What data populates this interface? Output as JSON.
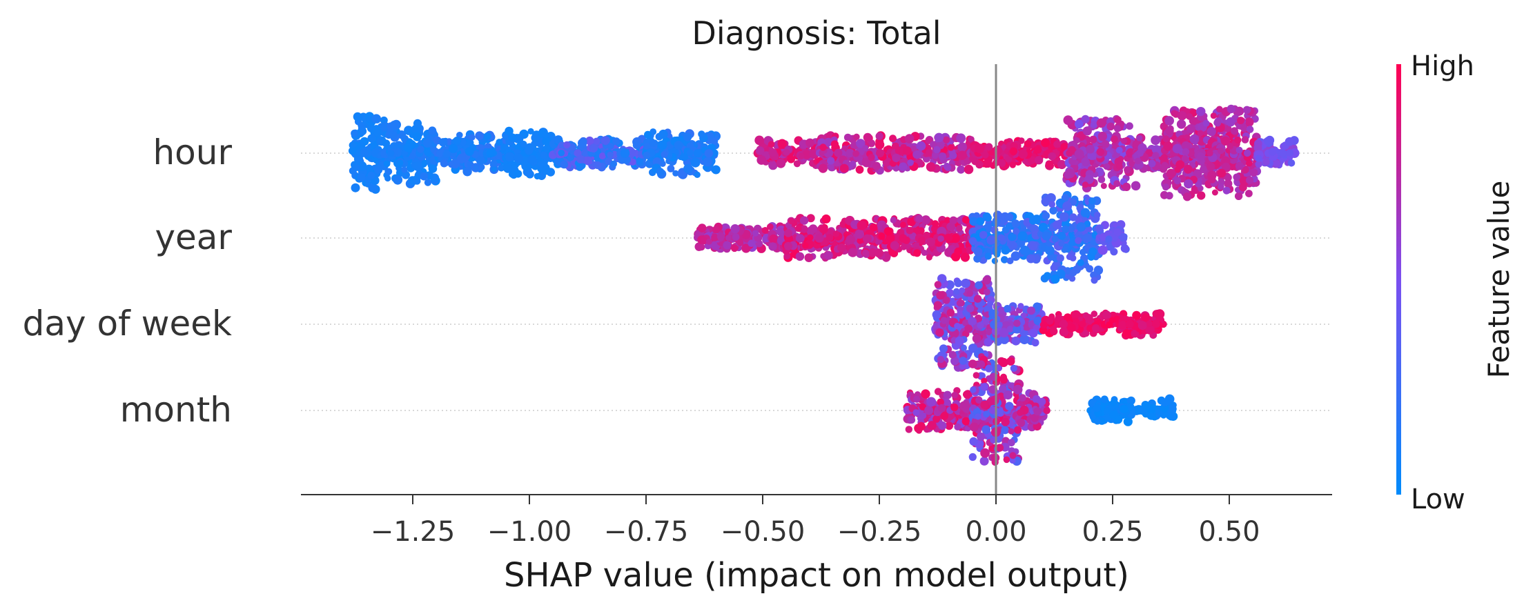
{
  "chart_data": {
    "type": "scatter",
    "subtype": "shap-beeswarm",
    "title": "Diagnosis: Total",
    "xlabel": "SHAP value (impact on model output)",
    "ylabel": "",
    "xlim": [
      -1.45,
      0.65
    ],
    "x_ticks": [
      -1.25,
      -1.0,
      -0.75,
      -0.5,
      -0.25,
      0.0,
      0.25,
      0.5
    ],
    "x_tick_labels": [
      "−1.25",
      "−1.00",
      "−0.75",
      "−0.50",
      "−0.25",
      "0.00",
      "0.25",
      "0.50"
    ],
    "features": [
      {
        "name": "hour",
        "segments": [
          {
            "x0": -1.38,
            "x1": -1.31,
            "h": 2.6,
            "c0": 0.05,
            "c1": 0.12
          },
          {
            "x0": -1.31,
            "x1": -1.2,
            "h": 2.2,
            "c0": 0.05,
            "c1": 0.15
          },
          {
            "x0": -1.2,
            "x1": -1.05,
            "h": 1.3,
            "c0": 0.05,
            "c1": 0.2
          },
          {
            "x0": -1.05,
            "x1": -0.95,
            "h": 1.6,
            "c0": 0.05,
            "c1": 0.1
          },
          {
            "x0": -0.95,
            "x1": -0.75,
            "h": 1.0,
            "c0": 0.05,
            "c1": 0.45
          },
          {
            "x0": -0.75,
            "x1": -0.6,
            "h": 1.5,
            "c0": 0.05,
            "c1": 0.2
          },
          {
            "x0": -0.51,
            "x1": -0.38,
            "h": 0.9,
            "c0": 0.7,
            "c1": 0.95
          },
          {
            "x0": -0.38,
            "x1": -0.05,
            "h": 1.2,
            "c0": 0.6,
            "c1": 0.95
          },
          {
            "x0": -0.05,
            "x1": 0.15,
            "h": 0.9,
            "c0": 0.8,
            "c1": 0.98
          },
          {
            "x0": 0.15,
            "x1": 0.3,
            "h": 2.4,
            "c0": 0.5,
            "c1": 0.85
          },
          {
            "x0": 0.3,
            "x1": 0.36,
            "h": 1.1,
            "c0": 0.6,
            "c1": 0.85
          },
          {
            "x0": 0.36,
            "x1": 0.56,
            "h": 3.1,
            "c0": 0.6,
            "c1": 0.9
          },
          {
            "x0": 0.56,
            "x1": 0.64,
            "h": 0.9,
            "c0": 0.4,
            "c1": 0.6
          }
        ]
      },
      {
        "name": "year",
        "segments": [
          {
            "x0": -0.64,
            "x1": -0.45,
            "h": 0.8,
            "c0": 0.6,
            "c1": 0.9
          },
          {
            "x0": -0.45,
            "x1": -0.05,
            "h": 1.4,
            "c0": 0.7,
            "c1": 0.98
          },
          {
            "x0": -0.05,
            "x1": 0.1,
            "h": 1.6,
            "c0": 0.05,
            "c1": 0.35
          },
          {
            "x0": 0.1,
            "x1": 0.22,
            "h": 3.0,
            "c0": 0.05,
            "c1": 0.4
          },
          {
            "x0": 0.22,
            "x1": 0.28,
            "h": 1.0,
            "c0": 0.3,
            "c1": 0.5
          }
        ]
      },
      {
        "name": "day of week",
        "segments": [
          {
            "x0": -0.13,
            "x1": -0.01,
            "h": 3.2,
            "c0": 0.3,
            "c1": 0.85
          },
          {
            "x0": -0.01,
            "x1": 0.1,
            "h": 1.3,
            "c0": 0.2,
            "c1": 0.7
          },
          {
            "x0": 0.1,
            "x1": 0.36,
            "h": 0.8,
            "c0": 0.85,
            "c1": 1.0
          }
        ]
      },
      {
        "name": "month",
        "segments": [
          {
            "x0": -0.19,
            "x1": -0.05,
            "h": 1.4,
            "c0": 0.55,
            "c1": 0.95
          },
          {
            "x0": -0.05,
            "x1": 0.05,
            "h": 3.6,
            "c0": 0.3,
            "c1": 0.95
          },
          {
            "x0": 0.05,
            "x1": 0.11,
            "h": 1.2,
            "c0": 0.5,
            "c1": 0.9
          },
          {
            "x0": 0.2,
            "x1": 0.38,
            "h": 0.8,
            "c0": 0.02,
            "c1": 0.08
          }
        ]
      }
    ],
    "colorbar": {
      "label": "Feature value",
      "high_label": "High",
      "low_label": "Low",
      "low_color": "#008bfb",
      "mid_color": "#7a4ff0",
      "high_color": "#ff0052"
    }
  }
}
